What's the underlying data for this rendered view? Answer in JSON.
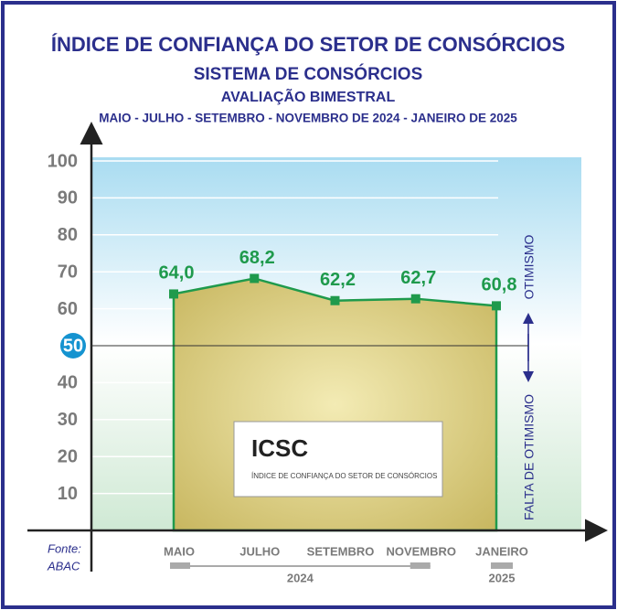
{
  "chart_data": {
    "type": "area-line",
    "title": "ÍNDICE DE CONFIANÇA DO SETOR DE CONSÓRCIOS",
    "subtitle": "SISTEMA DE CONSÓRCIOS",
    "subtitle2": "AVALIAÇÃO BIMESTRAL",
    "subtitle3": "MAIO - JULHO - SETEMBRO - NOVEMBRO DE 2024 - JANEIRO DE 2025",
    "categories": [
      "MAIO",
      "JULHO",
      "SETEMBRO",
      "NOVEMBRO",
      "JANEIRO"
    ],
    "years": [
      "2024",
      "2024",
      "2024",
      "2024",
      "2025"
    ],
    "values": [
      64.0,
      68.2,
      62.2,
      62.7,
      60.8
    ],
    "value_labels": [
      "64,0",
      "68,2",
      "62,2",
      "62,7",
      "60,8"
    ],
    "color": "#1f9a4c",
    "ylim": [
      0,
      100
    ],
    "yticks": [
      10,
      20,
      30,
      40,
      50,
      60,
      70,
      80,
      90,
      100
    ],
    "reference_line": 50,
    "upper_label": "OTIMISMO",
    "lower_label": "FALTA DE OTIMISMO",
    "logo_title": "ICSC",
    "logo_subtitle": "ÍNDICE DE CONFIANÇA DO SETOR DE CONSÓRCIOS",
    "source_label": "Fonte:",
    "source": "ABAC"
  }
}
